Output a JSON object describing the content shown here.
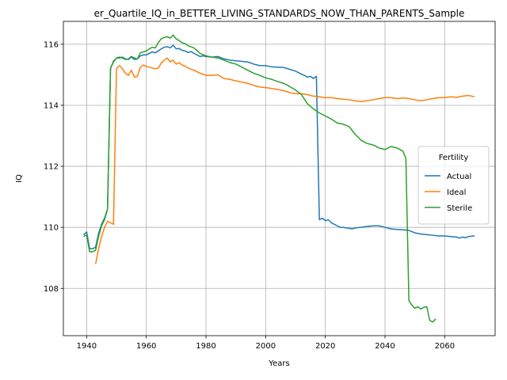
{
  "chart_data": {
    "type": "line",
    "title": "er_Quartile_IQ_in_BETTER_LIVING_STANDARDS_NOW_THAN_PARENTS_Sample",
    "xlabel": "Years",
    "ylabel": "IQ",
    "xlim": [
      1932.2,
      2076.9
    ],
    "ylim": [
      106.45,
      116.75
    ],
    "xticks": [
      1940,
      1960,
      1980,
      2000,
      2020,
      2040,
      2060
    ],
    "yticks": [
      108,
      110,
      112,
      114,
      116
    ],
    "grid": true,
    "legend": {
      "title": "Fertility",
      "placement": "center-right"
    },
    "series": [
      {
        "name": "Actual",
        "color": "#1f77b4",
        "points": [
          [
            1939,
            109.75
          ],
          [
            1940,
            109.85
          ],
          [
            1941,
            109.3
          ],
          [
            1942,
            109.3
          ],
          [
            1943,
            109.35
          ],
          [
            1944,
            109.8
          ],
          [
            1945,
            110.1
          ],
          [
            1946,
            110.3
          ],
          [
            1947,
            110.6
          ],
          [
            1948,
            115.2
          ],
          [
            1949,
            115.45
          ],
          [
            1950,
            115.55
          ],
          [
            1951,
            115.55
          ],
          [
            1952,
            115.58
          ],
          [
            1953,
            115.52
          ],
          [
            1954,
            115.5
          ],
          [
            1955,
            115.58
          ],
          [
            1956,
            115.5
          ],
          [
            1957,
            115.52
          ],
          [
            1958,
            115.62
          ],
          [
            1959,
            115.65
          ],
          [
            1960,
            115.65
          ],
          [
            1961,
            115.7
          ],
          [
            1962,
            115.75
          ],
          [
            1963,
            115.72
          ],
          [
            1964,
            115.78
          ],
          [
            1965,
            115.85
          ],
          [
            1966,
            115.9
          ],
          [
            1967,
            115.92
          ],
          [
            1968,
            115.88
          ],
          [
            1969,
            115.97
          ],
          [
            1970,
            115.85
          ],
          [
            1971,
            115.86
          ],
          [
            1972,
            115.8
          ],
          [
            1973,
            115.78
          ],
          [
            1974,
            115.73
          ],
          [
            1975,
            115.76
          ],
          [
            1976,
            115.7
          ],
          [
            1977,
            115.65
          ],
          [
            1978,
            115.6
          ],
          [
            1979,
            115.62
          ],
          [
            1980,
            115.6
          ],
          [
            1982,
            115.58
          ],
          [
            1984,
            115.6
          ],
          [
            1986,
            115.52
          ],
          [
            1988,
            115.48
          ],
          [
            1990,
            115.46
          ],
          [
            1992,
            115.44
          ],
          [
            1994,
            115.42
          ],
          [
            1996,
            115.35
          ],
          [
            1998,
            115.3
          ],
          [
            2000,
            115.3
          ],
          [
            2002,
            115.26
          ],
          [
            2004,
            115.25
          ],
          [
            2006,
            115.24
          ],
          [
            2008,
            115.18
          ],
          [
            2010,
            115.12
          ],
          [
            2012,
            115.02
          ],
          [
            2013,
            114.98
          ],
          [
            2014,
            114.92
          ],
          [
            2015,
            114.95
          ],
          [
            2016,
            114.88
          ],
          [
            2017,
            114.95
          ],
          [
            2018,
            110.25
          ],
          [
            2019,
            110.3
          ],
          [
            2020,
            110.22
          ],
          [
            2021,
            110.25
          ],
          [
            2022,
            110.15
          ],
          [
            2023,
            110.1
          ],
          [
            2024,
            110.05
          ],
          [
            2025,
            110.0
          ],
          [
            2026,
            110.0
          ],
          [
            2027,
            109.98
          ],
          [
            2028,
            109.97
          ],
          [
            2029,
            109.95
          ],
          [
            2030,
            109.98
          ],
          [
            2032,
            110.0
          ],
          [
            2034,
            110.03
          ],
          [
            2036,
            110.05
          ],
          [
            2038,
            110.05
          ],
          [
            2040,
            110.0
          ],
          [
            2042,
            109.95
          ],
          [
            2044,
            109.93
          ],
          [
            2046,
            109.92
          ],
          [
            2048,
            109.9
          ],
          [
            2050,
            109.82
          ],
          [
            2052,
            109.78
          ],
          [
            2054,
            109.76
          ],
          [
            2056,
            109.74
          ],
          [
            2058,
            109.72
          ],
          [
            2060,
            109.72
          ],
          [
            2062,
            109.7
          ],
          [
            2064,
            109.68
          ],
          [
            2065,
            109.65
          ],
          [
            2066,
            109.68
          ],
          [
            2067,
            109.66
          ],
          [
            2068,
            109.7
          ],
          [
            2070,
            109.72
          ]
        ]
      },
      {
        "name": "Ideal",
        "color": "#ff7f0e",
        "points": [
          [
            1943,
            108.8
          ],
          [
            1944,
            109.3
          ],
          [
            1945,
            109.7
          ],
          [
            1946,
            110.0
          ],
          [
            1947,
            110.2
          ],
          [
            1948,
            110.15
          ],
          [
            1949,
            110.1
          ],
          [
            1950,
            115.2
          ],
          [
            1951,
            115.3
          ],
          [
            1952,
            115.2
          ],
          [
            1953,
            115.05
          ],
          [
            1954,
            114.98
          ],
          [
            1955,
            115.15
          ],
          [
            1956,
            114.92
          ],
          [
            1957,
            114.95
          ],
          [
            1958,
            115.25
          ],
          [
            1959,
            115.32
          ],
          [
            1960,
            115.27
          ],
          [
            1961,
            115.25
          ],
          [
            1962,
            115.22
          ],
          [
            1963,
            115.2
          ],
          [
            1964,
            115.22
          ],
          [
            1965,
            115.38
          ],
          [
            1966,
            115.48
          ],
          [
            1967,
            115.55
          ],
          [
            1968,
            115.42
          ],
          [
            1969,
            115.48
          ],
          [
            1970,
            115.35
          ],
          [
            1971,
            115.4
          ],
          [
            1972,
            115.32
          ],
          [
            1973,
            115.28
          ],
          [
            1974,
            115.22
          ],
          [
            1976,
            115.15
          ],
          [
            1978,
            115.05
          ],
          [
            1980,
            114.98
          ],
          [
            1982,
            114.98
          ],
          [
            1984,
            115.0
          ],
          [
            1986,
            114.88
          ],
          [
            1988,
            114.85
          ],
          [
            1990,
            114.8
          ],
          [
            1992,
            114.76
          ],
          [
            1994,
            114.72
          ],
          [
            1996,
            114.65
          ],
          [
            1998,
            114.6
          ],
          [
            2000,
            114.58
          ],
          [
            2002,
            114.55
          ],
          [
            2004,
            114.52
          ],
          [
            2006,
            114.48
          ],
          [
            2008,
            114.42
          ],
          [
            2010,
            114.38
          ],
          [
            2012,
            114.38
          ],
          [
            2014,
            114.35
          ],
          [
            2016,
            114.3
          ],
          [
            2018,
            114.28
          ],
          [
            2020,
            114.25
          ],
          [
            2022,
            114.25
          ],
          [
            2024,
            114.22
          ],
          [
            2026,
            114.2
          ],
          [
            2028,
            114.18
          ],
          [
            2030,
            114.15
          ],
          [
            2032,
            114.12
          ],
          [
            2034,
            114.15
          ],
          [
            2036,
            114.18
          ],
          [
            2038,
            114.22
          ],
          [
            2040,
            114.25
          ],
          [
            2042,
            114.25
          ],
          [
            2044,
            114.22
          ],
          [
            2046,
            114.24
          ],
          [
            2048,
            114.22
          ],
          [
            2050,
            114.18
          ],
          [
            2052,
            114.15
          ],
          [
            2054,
            114.18
          ],
          [
            2056,
            114.22
          ],
          [
            2058,
            114.25
          ],
          [
            2060,
            114.25
          ],
          [
            2062,
            114.28
          ],
          [
            2064,
            114.26
          ],
          [
            2066,
            114.3
          ],
          [
            2068,
            114.32
          ],
          [
            2070,
            114.28
          ]
        ]
      },
      {
        "name": "Sterile",
        "color": "#2ca02c",
        "points": [
          [
            1939,
            109.7
          ],
          [
            1940,
            109.75
          ],
          [
            1941,
            109.2
          ],
          [
            1942,
            109.2
          ],
          [
            1943,
            109.25
          ],
          [
            1944,
            109.7
          ],
          [
            1945,
            110.05
          ],
          [
            1946,
            110.25
          ],
          [
            1947,
            110.6
          ],
          [
            1948,
            115.22
          ],
          [
            1949,
            115.42
          ],
          [
            1950,
            115.55
          ],
          [
            1951,
            115.58
          ],
          [
            1952,
            115.55
          ],
          [
            1953,
            115.5
          ],
          [
            1954,
            115.52
          ],
          [
            1955,
            115.6
          ],
          [
            1956,
            115.55
          ],
          [
            1957,
            115.52
          ],
          [
            1958,
            115.72
          ],
          [
            1959,
            115.75
          ],
          [
            1960,
            115.78
          ],
          [
            1961,
            115.85
          ],
          [
            1962,
            115.9
          ],
          [
            1963,
            115.88
          ],
          [
            1964,
            116.05
          ],
          [
            1965,
            116.18
          ],
          [
            1966,
            116.22
          ],
          [
            1967,
            116.25
          ],
          [
            1968,
            116.2
          ],
          [
            1969,
            116.3
          ],
          [
            1970,
            116.18
          ],
          [
            1971,
            116.12
          ],
          [
            1972,
            116.05
          ],
          [
            1973,
            116.02
          ],
          [
            1974,
            115.95
          ],
          [
            1976,
            115.88
          ],
          [
            1978,
            115.7
          ],
          [
            1980,
            115.62
          ],
          [
            1982,
            115.58
          ],
          [
            1984,
            115.55
          ],
          [
            1986,
            115.48
          ],
          [
            1988,
            115.4
          ],
          [
            1990,
            115.35
          ],
          [
            1992,
            115.25
          ],
          [
            1994,
            115.15
          ],
          [
            1996,
            115.05
          ],
          [
            1998,
            114.98
          ],
          [
            2000,
            114.9
          ],
          [
            2002,
            114.85
          ],
          [
            2004,
            114.78
          ],
          [
            2006,
            114.72
          ],
          [
            2008,
            114.62
          ],
          [
            2010,
            114.5
          ],
          [
            2012,
            114.35
          ],
          [
            2014,
            114.05
          ],
          [
            2016,
            113.88
          ],
          [
            2018,
            113.75
          ],
          [
            2020,
            113.65
          ],
          [
            2022,
            113.55
          ],
          [
            2024,
            113.42
          ],
          [
            2026,
            113.38
          ],
          [
            2028,
            113.3
          ],
          [
            2030,
            113.05
          ],
          [
            2032,
            112.85
          ],
          [
            2034,
            112.75
          ],
          [
            2036,
            112.7
          ],
          [
            2038,
            112.6
          ],
          [
            2040,
            112.55
          ],
          [
            2042,
            112.65
          ],
          [
            2044,
            112.6
          ],
          [
            2046,
            112.5
          ],
          [
            2047,
            112.25
          ],
          [
            2048,
            107.6
          ],
          [
            2049,
            107.45
          ],
          [
            2050,
            107.35
          ],
          [
            2051,
            107.4
          ],
          [
            2052,
            107.32
          ],
          [
            2053,
            107.38
          ],
          [
            2054,
            107.4
          ],
          [
            2055,
            106.95
          ],
          [
            2056,
            106.9
          ],
          [
            2057,
            107.0
          ]
        ]
      }
    ]
  }
}
